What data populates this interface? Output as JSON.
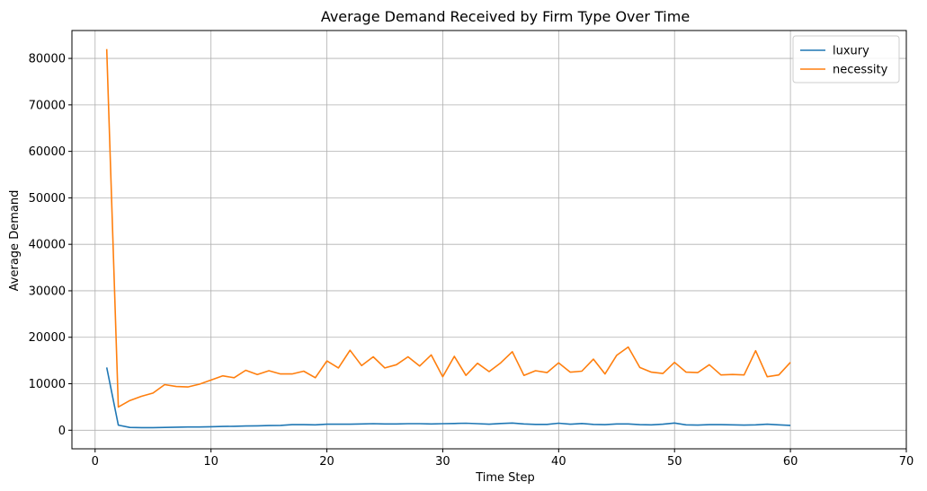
{
  "chart_data": {
    "type": "line",
    "title": "Average Demand Received by Firm Type Over Time",
    "xlabel": "Time Step",
    "ylabel": "Average Demand",
    "xlim": [
      -2,
      70
    ],
    "ylim": [
      -4000,
      86000
    ],
    "xticks": [
      0,
      10,
      20,
      30,
      40,
      50,
      60,
      70
    ],
    "yticks": [
      0,
      10000,
      20000,
      30000,
      40000,
      50000,
      60000,
      70000,
      80000
    ],
    "grid": true,
    "legend_position": "top-right",
    "x": [
      1,
      2,
      3,
      4,
      5,
      6,
      7,
      8,
      9,
      10,
      11,
      12,
      13,
      14,
      15,
      16,
      17,
      18,
      19,
      20,
      21,
      22,
      23,
      24,
      25,
      26,
      27,
      28,
      29,
      30,
      31,
      32,
      33,
      34,
      35,
      36,
      37,
      38,
      39,
      40,
      41,
      42,
      43,
      44,
      45,
      46,
      47,
      48,
      49,
      50,
      51,
      52,
      53,
      54,
      55,
      56,
      57,
      58,
      59,
      60
    ],
    "series": [
      {
        "name": "luxury",
        "color": "#1f77b4",
        "values": [
          13500,
          1100,
          600,
          550,
          550,
          600,
          650,
          700,
          700,
          750,
          800,
          850,
          900,
          950,
          1000,
          1050,
          1200,
          1200,
          1150,
          1300,
          1300,
          1300,
          1350,
          1400,
          1350,
          1350,
          1400,
          1400,
          1350,
          1400,
          1450,
          1500,
          1400,
          1300,
          1450,
          1550,
          1350,
          1250,
          1250,
          1500,
          1300,
          1450,
          1250,
          1200,
          1350,
          1350,
          1200,
          1150,
          1300,
          1550,
          1150,
          1100,
          1200,
          1200,
          1150,
          1100,
          1150,
          1300,
          1150,
          1050
        ]
      },
      {
        "name": "necessity",
        "color": "#ff7f0e",
        "values": [
          82000,
          5000,
          6400,
          7300,
          8000,
          9800,
          9400,
          9300,
          9900,
          10800,
          11700,
          11300,
          12900,
          12000,
          12800,
          12100,
          12100,
          12700,
          11300,
          14900,
          13400,
          17200,
          13900,
          15800,
          13400,
          14100,
          15800,
          13800,
          16200,
          11500,
          15900,
          11800,
          14400,
          12600,
          14500,
          16900,
          11800,
          12800,
          12400,
          14500,
          12500,
          12700,
          15300,
          12100,
          16100,
          17900,
          13500,
          12500,
          12200,
          14600,
          12500,
          12400,
          14100,
          11900,
          12000,
          11900,
          17100,
          11500,
          11900,
          14600
        ]
      }
    ]
  }
}
